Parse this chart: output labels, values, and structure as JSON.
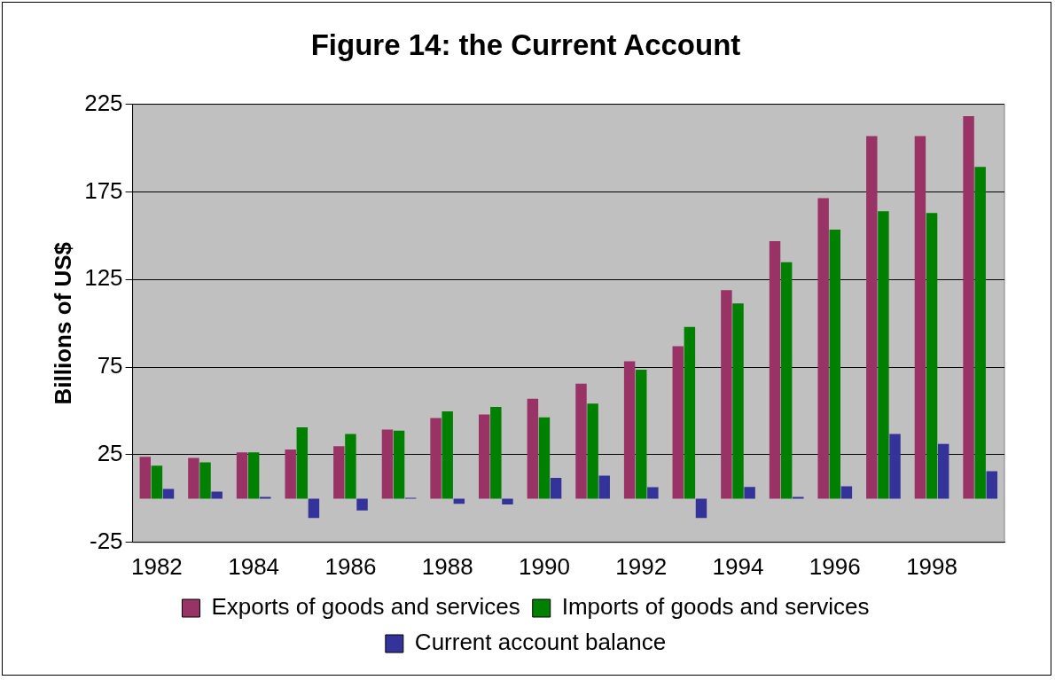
{
  "chart_data": {
    "type": "bar",
    "title": "Figure 14: the Current Account",
    "ylabel": "Billions of US$",
    "categories": [
      "1982",
      null,
      "1984",
      null,
      "1986",
      null,
      "1988",
      null,
      "1990",
      null,
      "1992",
      null,
      "1994",
      null,
      "1996",
      null,
      "1998",
      null
    ],
    "series": [
      {
        "name": "Exports of goods and services",
        "color": "#993366",
        "values": [
          23.8,
          23.2,
          26.4,
          28,
          29.9,
          39.4,
          46,
          48,
          57,
          65.6,
          78.4,
          86.9,
          118.9,
          146.9,
          171.4,
          206.8,
          206.8,
          218.2
        ]
      },
      {
        "name": "Imports of goods and services",
        "color": "#008000",
        "values": [
          18.8,
          20.7,
          26.4,
          40.7,
          36.9,
          38.8,
          49.8,
          52.3,
          46.4,
          54.2,
          73.6,
          98,
          111.3,
          134.9,
          153.5,
          164,
          163,
          189.3
        ]
      },
      {
        "name": "Current account balance",
        "color": "#333399",
        "values": [
          5.5,
          4,
          1,
          -11,
          -6.7,
          0.5,
          -3,
          -3.4,
          11.8,
          13.1,
          6.5,
          -11,
          6.7,
          1,
          7,
          36.9,
          31.2,
          15.6
        ]
      }
    ],
    "ylim": [
      -25,
      225
    ],
    "yticks": [
      -25,
      25,
      75,
      125,
      175,
      225
    ],
    "grid": "y",
    "legend": "bottom"
  }
}
